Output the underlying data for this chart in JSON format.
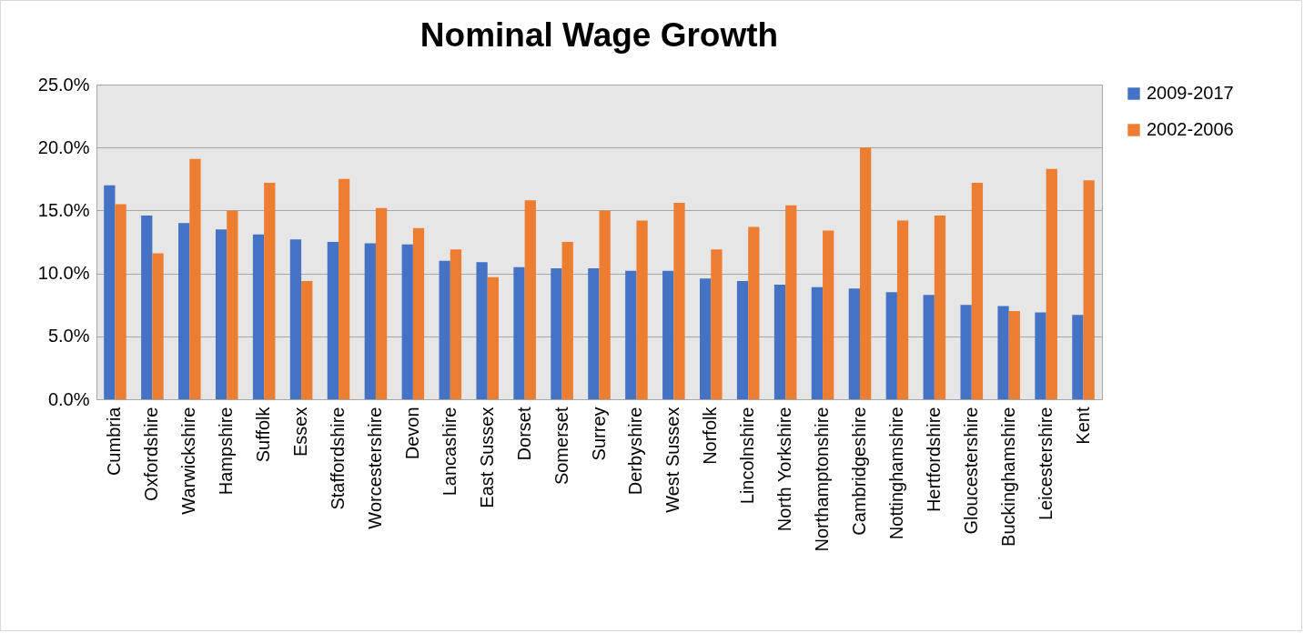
{
  "chart_data": {
    "type": "bar",
    "title": "Nominal Wage Growth",
    "categories": [
      "Cumbria",
      "Oxfordshire",
      "Warwickshire",
      "Hampshire",
      "Suffolk",
      "Essex",
      "Staffordshire",
      "Worcestershire",
      "Devon",
      "Lancashire",
      "East Sussex",
      "Dorset",
      "Somerset",
      "Surrey",
      "Derbyshire",
      "West Sussex",
      "Norfolk",
      "Lincolnshire",
      "North Yorkshire",
      "Northamptonshire",
      "Cambridgeshire",
      "Nottinghamshire",
      "Hertfordshire",
      "Gloucestershire",
      "Buckinghamshire",
      "Leicestershire",
      "Kent"
    ],
    "series": [
      {
        "name": "2009-2017",
        "color": "#4472c4",
        "values": [
          17.0,
          14.6,
          14.0,
          13.5,
          13.1,
          12.7,
          12.5,
          12.4,
          12.3,
          11.0,
          10.9,
          10.5,
          10.4,
          10.4,
          10.2,
          10.2,
          9.6,
          9.4,
          9.1,
          8.9,
          8.8,
          8.5,
          8.3,
          7.5,
          7.4,
          6.9,
          6.7
        ]
      },
      {
        "name": "2002-2006",
        "color": "#ed7d31",
        "values": [
          15.5,
          11.6,
          19.1,
          15.0,
          17.2,
          9.4,
          17.5,
          15.2,
          13.6,
          11.9,
          9.7,
          15.8,
          12.5,
          15.0,
          14.2,
          15.6,
          11.9,
          13.7,
          15.4,
          13.4,
          20.0,
          14.2,
          14.6,
          17.2,
          7.0,
          18.3,
          17.4
        ]
      }
    ],
    "ylim": [
      0,
      25
    ],
    "yticks": [
      {
        "value": 0,
        "label": "0.0%"
      },
      {
        "value": 5,
        "label": "5.0%"
      },
      {
        "value": 10,
        "label": "10.0%"
      },
      {
        "value": 15,
        "label": "15.0%"
      },
      {
        "value": 20,
        "label": "20.0%"
      },
      {
        "value": 25,
        "label": "25.0%"
      }
    ],
    "grid": "y",
    "legend": "right"
  }
}
